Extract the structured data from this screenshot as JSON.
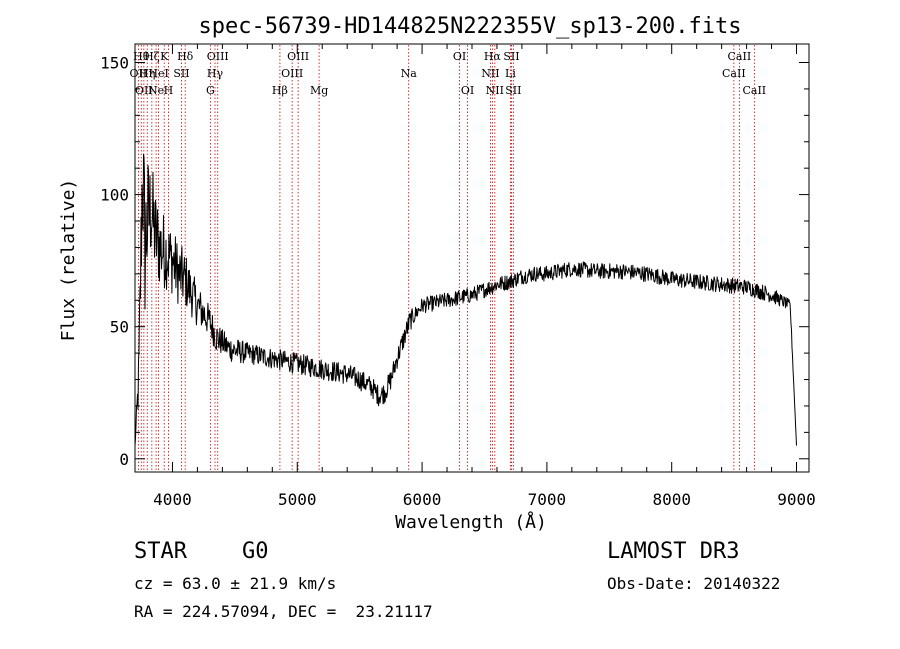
{
  "chart_data": {
    "type": "line",
    "title": "spec-56739-HD144825N222355V_sp13-200.fits",
    "xlabel": "Wavelength (Å)",
    "ylabel": "Flux (relative)",
    "xlim": [
      3700,
      9100
    ],
    "ylim": [
      -5,
      157
    ],
    "x_ticks": [
      4000,
      5000,
      6000,
      7000,
      8000,
      9000
    ],
    "y_ticks": [
      0,
      50,
      100,
      150
    ],
    "grid": false,
    "series": [
      {
        "name": "spectrum",
        "x": [
          3700,
          3730,
          3760,
          3780,
          3800,
          3830,
          3860,
          3900,
          3950,
          4000,
          4050,
          4100,
          4150,
          4200,
          4250,
          4300,
          4350,
          4400,
          4450,
          4500,
          4600,
          4700,
          4800,
          4900,
          5000,
          5100,
          5200,
          5300,
          5400,
          5500,
          5600,
          5650,
          5700,
          5750,
          5800,
          5850,
          5900,
          5950,
          6000,
          6100,
          6200,
          6300,
          6400,
          6500,
          6600,
          6700,
          6800,
          6900,
          7000,
          7100,
          7200,
          7400,
          7600,
          7800,
          8000,
          8200,
          8400,
          8600,
          8800,
          8950,
          9000
        ],
        "y": [
          5,
          30,
          110,
          80,
          90,
          95,
          85,
          80,
          78,
          75,
          70,
          68,
          63,
          58,
          55,
          52,
          46,
          44,
          42,
          41,
          40,
          39,
          38,
          37,
          36,
          35,
          34,
          33,
          32,
          30,
          27,
          24,
          25,
          30,
          38,
          45,
          52,
          55,
          58,
          59,
          60,
          61,
          62,
          64,
          66,
          67,
          69,
          70,
          70,
          71,
          72,
          71,
          71,
          70,
          68,
          67,
          66,
          65,
          62,
          58,
          5
        ],
        "noise": [
          0,
          12,
          30,
          30,
          25,
          20,
          18,
          16,
          14,
          13,
          12,
          11,
          9,
          8,
          7,
          6,
          6,
          5,
          5,
          5,
          4,
          4,
          4,
          4,
          4,
          4,
          4,
          4,
          4,
          4,
          4,
          4,
          4,
          4,
          4,
          4,
          4,
          3,
          3,
          3,
          3,
          3,
          3,
          3,
          3,
          3,
          3,
          3,
          3,
          3,
          3,
          3,
          3,
          3,
          3,
          3,
          3,
          3,
          3,
          2,
          0
        ]
      }
    ],
    "lines": [
      {
        "wl": 3727,
        "row": 1,
        "label": "OII"
      },
      {
        "wl": 3750,
        "row": 0,
        "label": "Hθ"
      },
      {
        "wl": 3771,
        "row": 2,
        "label": "OII"
      },
      {
        "wl": 3798,
        "row": 1,
        "label": "Hη"
      },
      {
        "wl": 3835,
        "row": 0,
        "label": "Hζ"
      },
      {
        "wl": 3869,
        "row": 2,
        "label": "Ne"
      },
      {
        "wl": 3889,
        "row": 1,
        "label": "HeI"
      },
      {
        "wl": 3934,
        "row": 0,
        "label": "K"
      },
      {
        "wl": 3968,
        "row": 2,
        "label": "H"
      },
      {
        "wl": 4072,
        "row": 1,
        "label": "SII"
      },
      {
        "wl": 4102,
        "row": 0,
        "label": "Hδ"
      },
      {
        "wl": 4304,
        "row": 2,
        "label": "G"
      },
      {
        "wl": 4341,
        "row": 1,
        "label": "Hγ"
      },
      {
        "wl": 4363,
        "row": 0,
        "label": "OIII"
      },
      {
        "wl": 4861,
        "row": 2,
        "label": "Hβ"
      },
      {
        "wl": 4959,
        "row": 1,
        "label": "OIII"
      },
      {
        "wl": 5007,
        "row": 0,
        "label": "OIII"
      },
      {
        "wl": 5175,
        "row": 2,
        "label": "Mg"
      },
      {
        "wl": 5893,
        "row": 1,
        "label": "Na"
      },
      {
        "wl": 6300,
        "row": 0,
        "label": "OI"
      },
      {
        "wl": 6364,
        "row": 2,
        "label": "OI"
      },
      {
        "wl": 6548,
        "row": 1,
        "label": "NII"
      },
      {
        "wl": 6563,
        "row": 0,
        "label": "Hα"
      },
      {
        "wl": 6583,
        "row": 2,
        "label": "NII"
      },
      {
        "wl": 6708,
        "row": 1,
        "label": "Li"
      },
      {
        "wl": 6716,
        "row": 0,
        "label": "SII"
      },
      {
        "wl": 6731,
        "row": 2,
        "label": "SII"
      },
      {
        "wl": 8498,
        "row": 1,
        "label": "CaII"
      },
      {
        "wl": 8542,
        "row": 0,
        "label": "CaII"
      },
      {
        "wl": 8662,
        "row": 2,
        "label": "CaII"
      }
    ]
  },
  "info": {
    "object_class": "STAR",
    "subclass": "G0",
    "survey": "LAMOST DR3",
    "redshift": "cz = 63.0 ± 21.9 km/s",
    "obs_date": "Obs-Date: 20140322",
    "coords": "RA = 224.57094, DEC =  23.21117"
  },
  "colors": {
    "line": "#000000",
    "marker": "#cc0000",
    "background": "#ffffff"
  }
}
